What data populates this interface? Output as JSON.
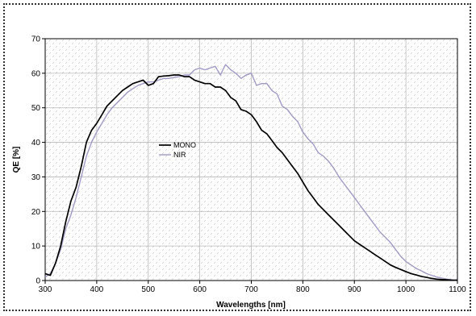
{
  "chart_data": {
    "type": "line",
    "xlabel": "Wavelengths [nm]",
    "ylabel": "QE [%]",
    "xlim": [
      300,
      1100
    ],
    "ylim": [
      0,
      70
    ],
    "x_ticks": [
      300,
      400,
      500,
      600,
      700,
      800,
      900,
      1000,
      1100
    ],
    "y_ticks": [
      0,
      10,
      20,
      30,
      40,
      50,
      60,
      70
    ],
    "grid": true,
    "legend_position": "center-left",
    "series": [
      {
        "name": "MONO",
        "color": "#000000",
        "points": [
          [
            300,
            2
          ],
          [
            310,
            1.5
          ],
          [
            320,
            5
          ],
          [
            330,
            10
          ],
          [
            340,
            17
          ],
          [
            350,
            23
          ],
          [
            360,
            27
          ],
          [
            370,
            33
          ],
          [
            380,
            40
          ],
          [
            390,
            43.5
          ],
          [
            400,
            45.5
          ],
          [
            410,
            48
          ],
          [
            420,
            50.5
          ],
          [
            430,
            52
          ],
          [
            440,
            53.5
          ],
          [
            450,
            55
          ],
          [
            460,
            56
          ],
          [
            470,
            57
          ],
          [
            480,
            57.5
          ],
          [
            490,
            58
          ],
          [
            500,
            56.5
          ],
          [
            510,
            57
          ],
          [
            520,
            59
          ],
          [
            530,
            59.2
          ],
          [
            540,
            59.3
          ],
          [
            550,
            59.5
          ],
          [
            560,
            59.5
          ],
          [
            570,
            59
          ],
          [
            580,
            59
          ],
          [
            590,
            58
          ],
          [
            600,
            57.5
          ],
          [
            610,
            57
          ],
          [
            620,
            57
          ],
          [
            630,
            56
          ],
          [
            640,
            56
          ],
          [
            650,
            55
          ],
          [
            660,
            53
          ],
          [
            670,
            52
          ],
          [
            680,
            49.5
          ],
          [
            690,
            49
          ],
          [
            700,
            48
          ],
          [
            710,
            46
          ],
          [
            720,
            43.5
          ],
          [
            730,
            42.5
          ],
          [
            740,
            40.5
          ],
          [
            750,
            38.5
          ],
          [
            760,
            37
          ],
          [
            770,
            35
          ],
          [
            780,
            33
          ],
          [
            790,
            31
          ],
          [
            800,
            28.5
          ],
          [
            810,
            26
          ],
          [
            820,
            24
          ],
          [
            830,
            22
          ],
          [
            840,
            20.5
          ],
          [
            850,
            19
          ],
          [
            860,
            17.5
          ],
          [
            870,
            16
          ],
          [
            880,
            14.5
          ],
          [
            890,
            13
          ],
          [
            900,
            11.5
          ],
          [
            910,
            10.5
          ],
          [
            920,
            9.5
          ],
          [
            930,
            8.5
          ],
          [
            940,
            7.5
          ],
          [
            950,
            6.5
          ],
          [
            960,
            5.5
          ],
          [
            970,
            4.5
          ],
          [
            980,
            3.8
          ],
          [
            990,
            3.2
          ],
          [
            1000,
            2.6
          ],
          [
            1010,
            2
          ],
          [
            1020,
            1.6
          ],
          [
            1030,
            1.2
          ],
          [
            1040,
            0.9
          ],
          [
            1050,
            0.6
          ],
          [
            1060,
            0.4
          ],
          [
            1070,
            0.3
          ],
          [
            1080,
            0.2
          ],
          [
            1090,
            0.1
          ],
          [
            1100,
            0.1
          ]
        ]
      },
      {
        "name": "NIR",
        "color": "#a399c6",
        "points": [
          [
            300,
            1
          ],
          [
            310,
            2
          ],
          [
            320,
            5
          ],
          [
            330,
            9
          ],
          [
            340,
            15
          ],
          [
            350,
            19
          ],
          [
            360,
            24
          ],
          [
            370,
            30
          ],
          [
            380,
            36
          ],
          [
            390,
            40
          ],
          [
            400,
            43
          ],
          [
            410,
            45.5
          ],
          [
            420,
            48
          ],
          [
            430,
            50
          ],
          [
            440,
            51.5
          ],
          [
            450,
            53
          ],
          [
            460,
            54.5
          ],
          [
            470,
            55.5
          ],
          [
            480,
            56.5
          ],
          [
            490,
            57
          ],
          [
            500,
            57.5
          ],
          [
            510,
            57.5
          ],
          [
            520,
            58
          ],
          [
            530,
            58.5
          ],
          [
            540,
            58.5
          ],
          [
            550,
            58.8
          ],
          [
            560,
            59
          ],
          [
            570,
            59.5
          ],
          [
            580,
            59.5
          ],
          [
            590,
            61
          ],
          [
            600,
            61.5
          ],
          [
            610,
            61
          ],
          [
            620,
            61.5
          ],
          [
            630,
            62
          ],
          [
            640,
            59.5
          ],
          [
            650,
            62.5
          ],
          [
            660,
            61
          ],
          [
            670,
            60
          ],
          [
            680,
            58.5
          ],
          [
            690,
            59.5
          ],
          [
            700,
            60
          ],
          [
            710,
            56.5
          ],
          [
            720,
            57
          ],
          [
            730,
            57
          ],
          [
            740,
            55
          ],
          [
            750,
            54
          ],
          [
            760,
            50.5
          ],
          [
            770,
            49.5
          ],
          [
            780,
            47.5
          ],
          [
            790,
            46
          ],
          [
            800,
            43
          ],
          [
            810,
            41
          ],
          [
            820,
            39.5
          ],
          [
            830,
            37
          ],
          [
            840,
            36
          ],
          [
            850,
            34.5
          ],
          [
            860,
            32.5
          ],
          [
            870,
            30
          ],
          [
            880,
            28
          ],
          [
            890,
            26
          ],
          [
            900,
            24
          ],
          [
            910,
            22
          ],
          [
            920,
            20
          ],
          [
            930,
            18
          ],
          [
            940,
            16
          ],
          [
            950,
            14
          ],
          [
            960,
            12.5
          ],
          [
            970,
            11
          ],
          [
            980,
            9
          ],
          [
            990,
            7
          ],
          [
            1000,
            5.5
          ],
          [
            1010,
            4.5
          ],
          [
            1020,
            3.5
          ],
          [
            1030,
            2.8
          ],
          [
            1040,
            2
          ],
          [
            1050,
            1.5
          ],
          [
            1060,
            1
          ],
          [
            1070,
            0.7
          ],
          [
            1080,
            0.4
          ],
          [
            1090,
            0.2
          ],
          [
            1100,
            0.1
          ]
        ]
      }
    ]
  },
  "colors": {
    "grid": "#b8b8b8",
    "plot_border": "#000000",
    "hatch": "#c8c8c8",
    "frame": "#333333"
  }
}
